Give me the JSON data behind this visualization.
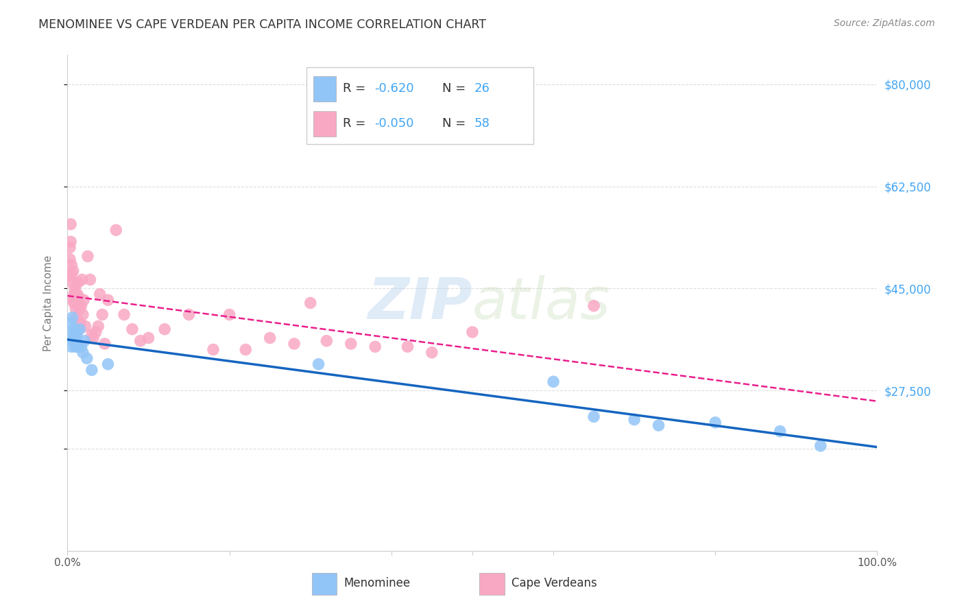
{
  "title": "MENOMINEE VS CAPE VERDEAN PER CAPITA INCOME CORRELATION CHART",
  "source": "Source: ZipAtlas.com",
  "ylabel": "Per Capita Income",
  "xmin": 0.0,
  "xmax": 1.0,
  "ymin": 0,
  "ymax": 85000,
  "menominee_color": "#92C5F7",
  "cape_verdean_color": "#F9A8C4",
  "menominee_line_color": "#1565C0",
  "cape_verdean_line_color": "#E91E8C",
  "legend_R_men": "-0.620",
  "legend_N_men": "26",
  "legend_R_cv": "-0.050",
  "legend_N_cv": "58",
  "right_ytick_color": "#42A5F5",
  "background_color": "#FFFFFF",
  "grid_color": "#DDDDDD",
  "title_color": "#333333",
  "menominee_x": [
    0.003,
    0.004,
    0.005,
    0.006,
    0.007,
    0.008,
    0.009,
    0.01,
    0.011,
    0.012,
    0.013,
    0.015,
    0.017,
    0.019,
    0.021,
    0.024,
    0.03,
    0.05,
    0.31,
    0.6,
    0.65,
    0.7,
    0.73,
    0.8,
    0.88,
    0.93
  ],
  "menominee_y": [
    37000,
    39000,
    35000,
    40000,
    36000,
    38000,
    37000,
    35000,
    36500,
    37500,
    35000,
    38000,
    35000,
    34000,
    36000,
    33000,
    31000,
    32000,
    32000,
    29000,
    23000,
    22500,
    21500,
    22000,
    20500,
    18000
  ],
  "cape_verdean_x": [
    0.002,
    0.003,
    0.003,
    0.004,
    0.004,
    0.005,
    0.005,
    0.006,
    0.007,
    0.007,
    0.008,
    0.008,
    0.009,
    0.009,
    0.01,
    0.01,
    0.011,
    0.012,
    0.012,
    0.013,
    0.014,
    0.015,
    0.016,
    0.017,
    0.018,
    0.019,
    0.02,
    0.022,
    0.025,
    0.028,
    0.03,
    0.032,
    0.035,
    0.038,
    0.04,
    0.043,
    0.046,
    0.05,
    0.06,
    0.07,
    0.08,
    0.09,
    0.1,
    0.12,
    0.15,
    0.18,
    0.2,
    0.22,
    0.25,
    0.28,
    0.3,
    0.32,
    0.35,
    0.38,
    0.42,
    0.45,
    0.5,
    0.65
  ],
  "cape_verdean_y": [
    47000,
    50000,
    52000,
    53000,
    56000,
    47500,
    49000,
    46000,
    43000,
    48000,
    42500,
    44000,
    43500,
    45000,
    43000,
    41500,
    40000,
    44000,
    42500,
    46000,
    43500,
    41500,
    39000,
    42000,
    46500,
    40500,
    43000,
    38500,
    50500,
    46500,
    37000,
    36500,
    37500,
    38500,
    44000,
    40500,
    35500,
    43000,
    55000,
    40500,
    38000,
    36000,
    36500,
    38000,
    40500,
    34500,
    40500,
    34500,
    36500,
    35500,
    42500,
    36000,
    35500,
    35000,
    35000,
    34000,
    37500,
    42000
  ]
}
